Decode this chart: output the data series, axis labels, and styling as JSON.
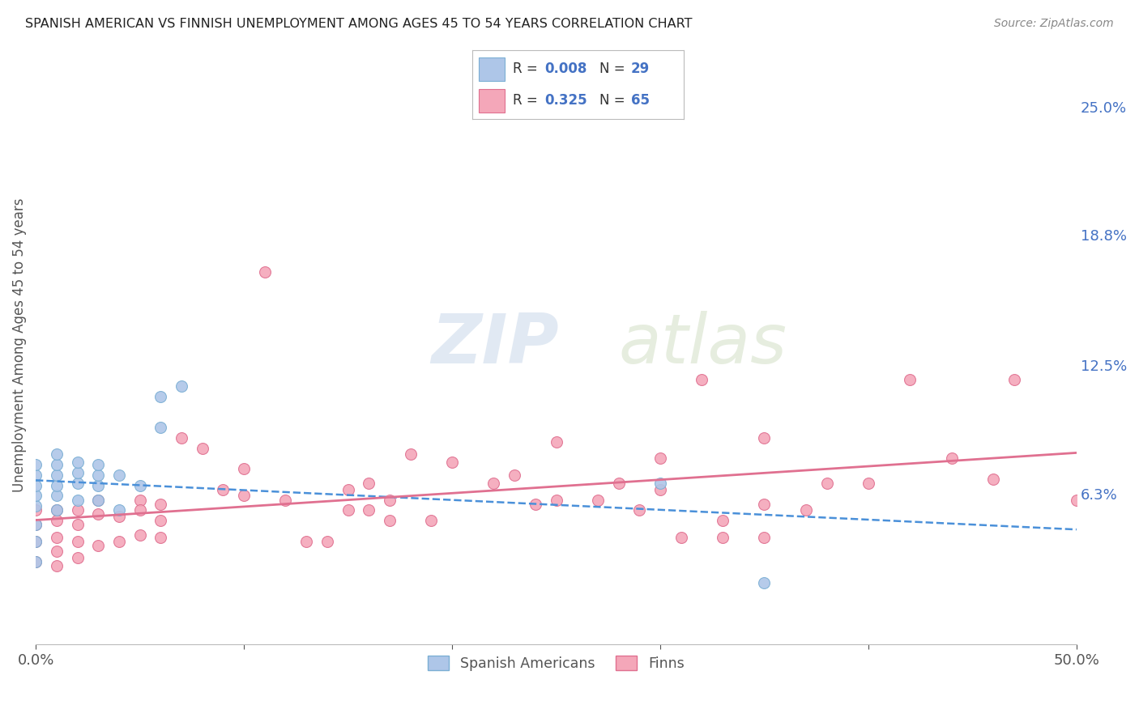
{
  "title": "SPANISH AMERICAN VS FINNISH UNEMPLOYMENT AMONG AGES 45 TO 54 YEARS CORRELATION CHART",
  "source": "Source: ZipAtlas.com",
  "ylabel": "Unemployment Among Ages 45 to 54 years",
  "xlim": [
    0.0,
    0.5
  ],
  "ylim": [
    -0.01,
    0.28
  ],
  "right_yticks": [
    0.063,
    0.125,
    0.188,
    0.25
  ],
  "right_yticklabels": [
    "6.3%",
    "12.5%",
    "18.8%",
    "25.0%"
  ],
  "sa_x": [
    0.0,
    0.0,
    0.0,
    0.0,
    0.0,
    0.0,
    0.0,
    0.0,
    0.01,
    0.01,
    0.01,
    0.01,
    0.01,
    0.01,
    0.02,
    0.02,
    0.02,
    0.02,
    0.03,
    0.03,
    0.03,
    0.03,
    0.04,
    0.04,
    0.05,
    0.06,
    0.06,
    0.07,
    0.3,
    0.35
  ],
  "sa_y": [
    0.057,
    0.062,
    0.067,
    0.072,
    0.077,
    0.048,
    0.04,
    0.03,
    0.062,
    0.067,
    0.072,
    0.077,
    0.082,
    0.055,
    0.068,
    0.073,
    0.078,
    0.06,
    0.067,
    0.072,
    0.077,
    0.06,
    0.072,
    0.055,
    0.067,
    0.11,
    0.095,
    0.115,
    0.068,
    0.02
  ],
  "fi_x": [
    0.0,
    0.0,
    0.0,
    0.0,
    0.01,
    0.01,
    0.01,
    0.01,
    0.01,
    0.02,
    0.02,
    0.02,
    0.02,
    0.03,
    0.03,
    0.03,
    0.04,
    0.04,
    0.05,
    0.05,
    0.05,
    0.06,
    0.06,
    0.06,
    0.07,
    0.08,
    0.09,
    0.1,
    0.1,
    0.11,
    0.12,
    0.13,
    0.14,
    0.15,
    0.15,
    0.16,
    0.16,
    0.17,
    0.17,
    0.18,
    0.19,
    0.2,
    0.22,
    0.23,
    0.24,
    0.25,
    0.25,
    0.27,
    0.28,
    0.29,
    0.3,
    0.3,
    0.31,
    0.32,
    0.33,
    0.33,
    0.35,
    0.35,
    0.35,
    0.37,
    0.38,
    0.4,
    0.42,
    0.44,
    0.46,
    0.47,
    0.5
  ],
  "fi_y": [
    0.055,
    0.048,
    0.04,
    0.03,
    0.055,
    0.05,
    0.042,
    0.035,
    0.028,
    0.055,
    0.048,
    0.04,
    0.032,
    0.06,
    0.053,
    0.038,
    0.052,
    0.04,
    0.06,
    0.055,
    0.043,
    0.058,
    0.05,
    0.042,
    0.09,
    0.085,
    0.065,
    0.075,
    0.062,
    0.17,
    0.06,
    0.04,
    0.04,
    0.065,
    0.055,
    0.068,
    0.055,
    0.06,
    0.05,
    0.082,
    0.05,
    0.078,
    0.068,
    0.072,
    0.058,
    0.088,
    0.06,
    0.06,
    0.068,
    0.055,
    0.08,
    0.065,
    0.042,
    0.118,
    0.05,
    0.042,
    0.09,
    0.058,
    0.042,
    0.055,
    0.068,
    0.068,
    0.118,
    0.08,
    0.07,
    0.118,
    0.06
  ],
  "sa_color": "#aec6e8",
  "sa_edge": "#7bafd4",
  "fi_color": "#f4a7b9",
  "fi_edge": "#e07090",
  "line_sa_color": "#4a90d9",
  "line_fi_color": "#e07090",
  "right_axis_color": "#4472c4",
  "grid_color": "#d0d0d0",
  "axis_color": "#555555",
  "title_color": "#222222",
  "background_color": "#ffffff",
  "watermark": "ZIPatlas",
  "watermark_zip_color": "#c5d8ed",
  "watermark_atlas_color": "#c8d8c0"
}
